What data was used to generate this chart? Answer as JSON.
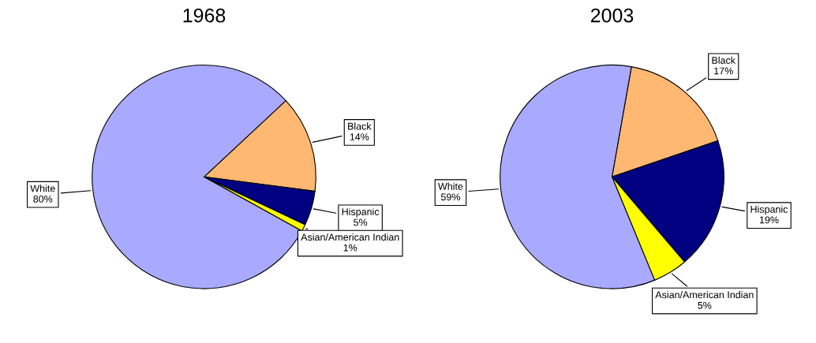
{
  "chart_data": [
    {
      "type": "pie",
      "title": "1968",
      "categories": [
        "Black",
        "Hispanic",
        "Asian/American Indian",
        "White"
      ],
      "values": [
        14,
        5,
        1,
        80
      ],
      "value_labels": [
        "14%",
        "5%",
        "1%",
        "80%"
      ],
      "colors": [
        "#ffb871",
        "#000080",
        "#ffff00",
        "#a9aaff"
      ],
      "legend": false
    },
    {
      "type": "pie",
      "title": "2003",
      "categories": [
        "Black",
        "Hispanic",
        "Asian/American Indian",
        "White"
      ],
      "values": [
        17,
        19,
        5,
        59
      ],
      "value_labels": [
        "17%",
        "19%",
        "5%",
        "59%"
      ],
      "colors": [
        "#ffb871",
        "#000080",
        "#ffff00",
        "#a9aaff"
      ],
      "legend": false
    }
  ]
}
